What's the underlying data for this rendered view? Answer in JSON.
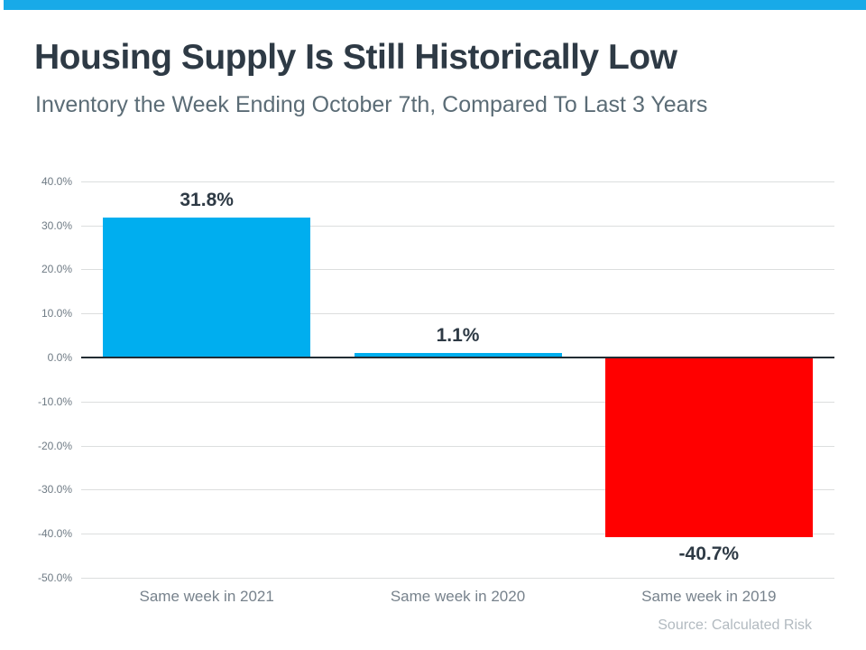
{
  "header": {
    "accent_color": "#18aae8"
  },
  "title": "Housing Supply Is Still Historically Low",
  "subtitle": "Inventory the Week Ending October 7th, Compared To Last 3 Years",
  "source": "Source: Calculated Risk",
  "chart_data": {
    "type": "bar",
    "title": "Housing Supply Is Still Historically Low",
    "subtitle": "Inventory the Week Ending October 7th, Compared To Last 3 Years",
    "categories": [
      "Same week in 2021",
      "Same week in 2020",
      "Same week in 2019"
    ],
    "values": [
      31.8,
      1.1,
      -40.7
    ],
    "data_labels": [
      "31.8%",
      "1.1%",
      "-40.7%"
    ],
    "bar_colors": [
      "#00aeef",
      "#00aeef",
      "#ff0000"
    ],
    "xlabel": "",
    "ylabel": "",
    "ylim": [
      -50,
      40
    ],
    "ytick_step": 10,
    "ytick_labels": [
      "40.0%",
      "30.0%",
      "20.0%",
      "10.0%",
      "0.0%",
      "-10.0%",
      "-20.0%",
      "-30.0%",
      "-40.0%",
      "-50.0%"
    ],
    "grid": true,
    "legend": false,
    "annotations": [
      "Source: Calculated Risk"
    ]
  }
}
